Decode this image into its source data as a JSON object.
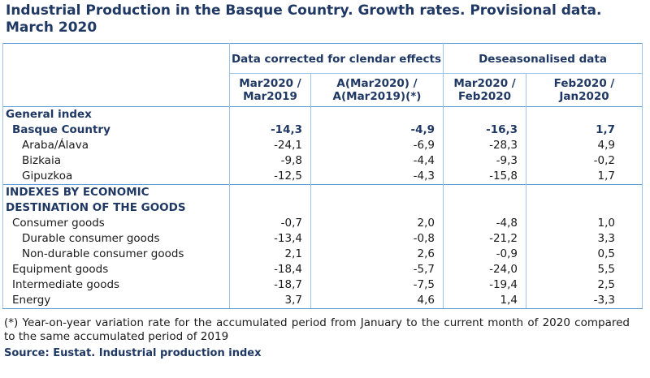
{
  "title": "Industrial Production in the Basque Country. Growth rates. Provisional data. March 2020",
  "header": {
    "group1": "Data corrected for clendar effects",
    "group2": "Deseasonalised data",
    "col1": "Mar2020 / Mar2019",
    "col2": "A(Mar2020) / A(Mar2019)(*)",
    "col3": "Mar2020 / Feb2020",
    "col4": "Feb2020 / Jan2020"
  },
  "sections": {
    "general": "General index",
    "economic_line1": "INDEXES BY ECONOMIC",
    "economic_line2": "DESTINATION OF THE GOODS"
  },
  "rows": [
    {
      "label": "Basque Country",
      "values": [
        "-14,3",
        "-4,9",
        "-16,3",
        "1,7"
      ]
    },
    {
      "label": "Araba/Álava",
      "values": [
        "-24,1",
        "-6,9",
        "-28,3",
        "4,9"
      ]
    },
    {
      "label": "Bizkaia",
      "values": [
        "-9,8",
        "-4,4",
        "-9,3",
        "-0,2"
      ]
    },
    {
      "label": "Gipuzkoa",
      "values": [
        "-12,5",
        "-4,3",
        "-15,8",
        "1,7"
      ]
    },
    {
      "label": "Consumer goods",
      "values": [
        "-0,7",
        "2,0",
        "-4,8",
        "1,0"
      ]
    },
    {
      "label": "Durable consumer goods",
      "values": [
        "-13,4",
        "-0,8",
        "-21,2",
        "3,3"
      ]
    },
    {
      "label": "Non-durable consumer goods",
      "values": [
        "2,1",
        "2,6",
        "-0,9",
        "0,5"
      ]
    },
    {
      "label": "Equipment goods",
      "values": [
        "-18,4",
        "-5,7",
        "-24,0",
        "5,5"
      ]
    },
    {
      "label": "Intermediate goods",
      "values": [
        "-18,7",
        "-7,5",
        "-19,4",
        "2,5"
      ]
    },
    {
      "label": "Energy",
      "values": [
        "3,7",
        "4,6",
        "1,4",
        "-3,3"
      ]
    }
  ],
  "note": "(*) Year-on-year variation rate for the accumulated period from January to the current month of 2020 compared to the same accumulated period of 2019",
  "source": "Source: Eustat. Industrial production index"
}
